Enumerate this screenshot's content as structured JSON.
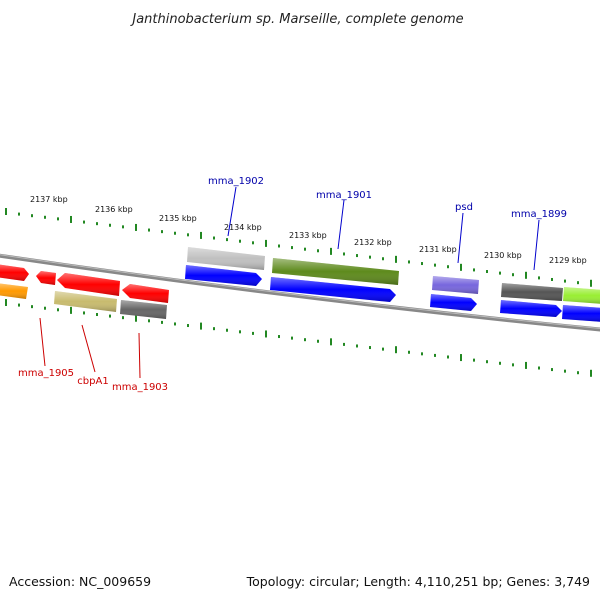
{
  "title": "Janthinobacterium sp. Marseille, complete genome",
  "accession": "Accession: NC_009659",
  "topology": "Topology: circular; Length: 4,110,251 bp; Genes: 3,749",
  "colors": {
    "background": "#ffffff",
    "backbone": "#808080",
    "tick": "#228822",
    "label_top": "#0000aa",
    "label_bottom": "#cc0000",
    "leader_top": "#0000cc",
    "leader_bottom": "#cc0000"
  },
  "scale_labels": [
    "2137 kbp",
    "2136 kbp",
    "2135 kbp",
    "2134 kbp",
    "2133 kbp",
    "2132 kbp",
    "2131 kbp",
    "2130 kbp",
    "2129 kbp"
  ],
  "gene_labels": {
    "top": [
      "mma_1902",
      "mma_1901",
      "psd",
      "mma_1899"
    ],
    "bottom": [
      "mma_1905",
      "cbpA1",
      "mma_1903"
    ]
  },
  "features": [
    {
      "color": "#ff0000",
      "kind": "arrow-left"
    },
    {
      "color": "#ff0000",
      "kind": "arrow-left"
    },
    {
      "color": "#ff0000",
      "kind": "arrow-left"
    },
    {
      "color": "#ff0000",
      "kind": "arrow-left"
    },
    {
      "color": "#ff9900",
      "kind": "block"
    },
    {
      "color": "#c8bb6e",
      "kind": "block"
    },
    {
      "color": "#666666",
      "kind": "block"
    },
    {
      "color": "#c0c0c0",
      "kind": "block"
    },
    {
      "color": "#0000ff",
      "kind": "arrow-right"
    },
    {
      "color": "#5e8a1c",
      "kind": "block"
    },
    {
      "color": "#0000ff",
      "kind": "arrow-right"
    },
    {
      "color": "#7766dd",
      "kind": "block"
    },
    {
      "color": "#0000ff",
      "kind": "arrow-right"
    },
    {
      "color": "#555555",
      "kind": "block"
    },
    {
      "color": "#0000ff",
      "kind": "arrow-right"
    },
    {
      "color": "#99ee33",
      "kind": "block"
    },
    {
      "color": "#0000ff",
      "kind": "arrow-right"
    }
  ]
}
